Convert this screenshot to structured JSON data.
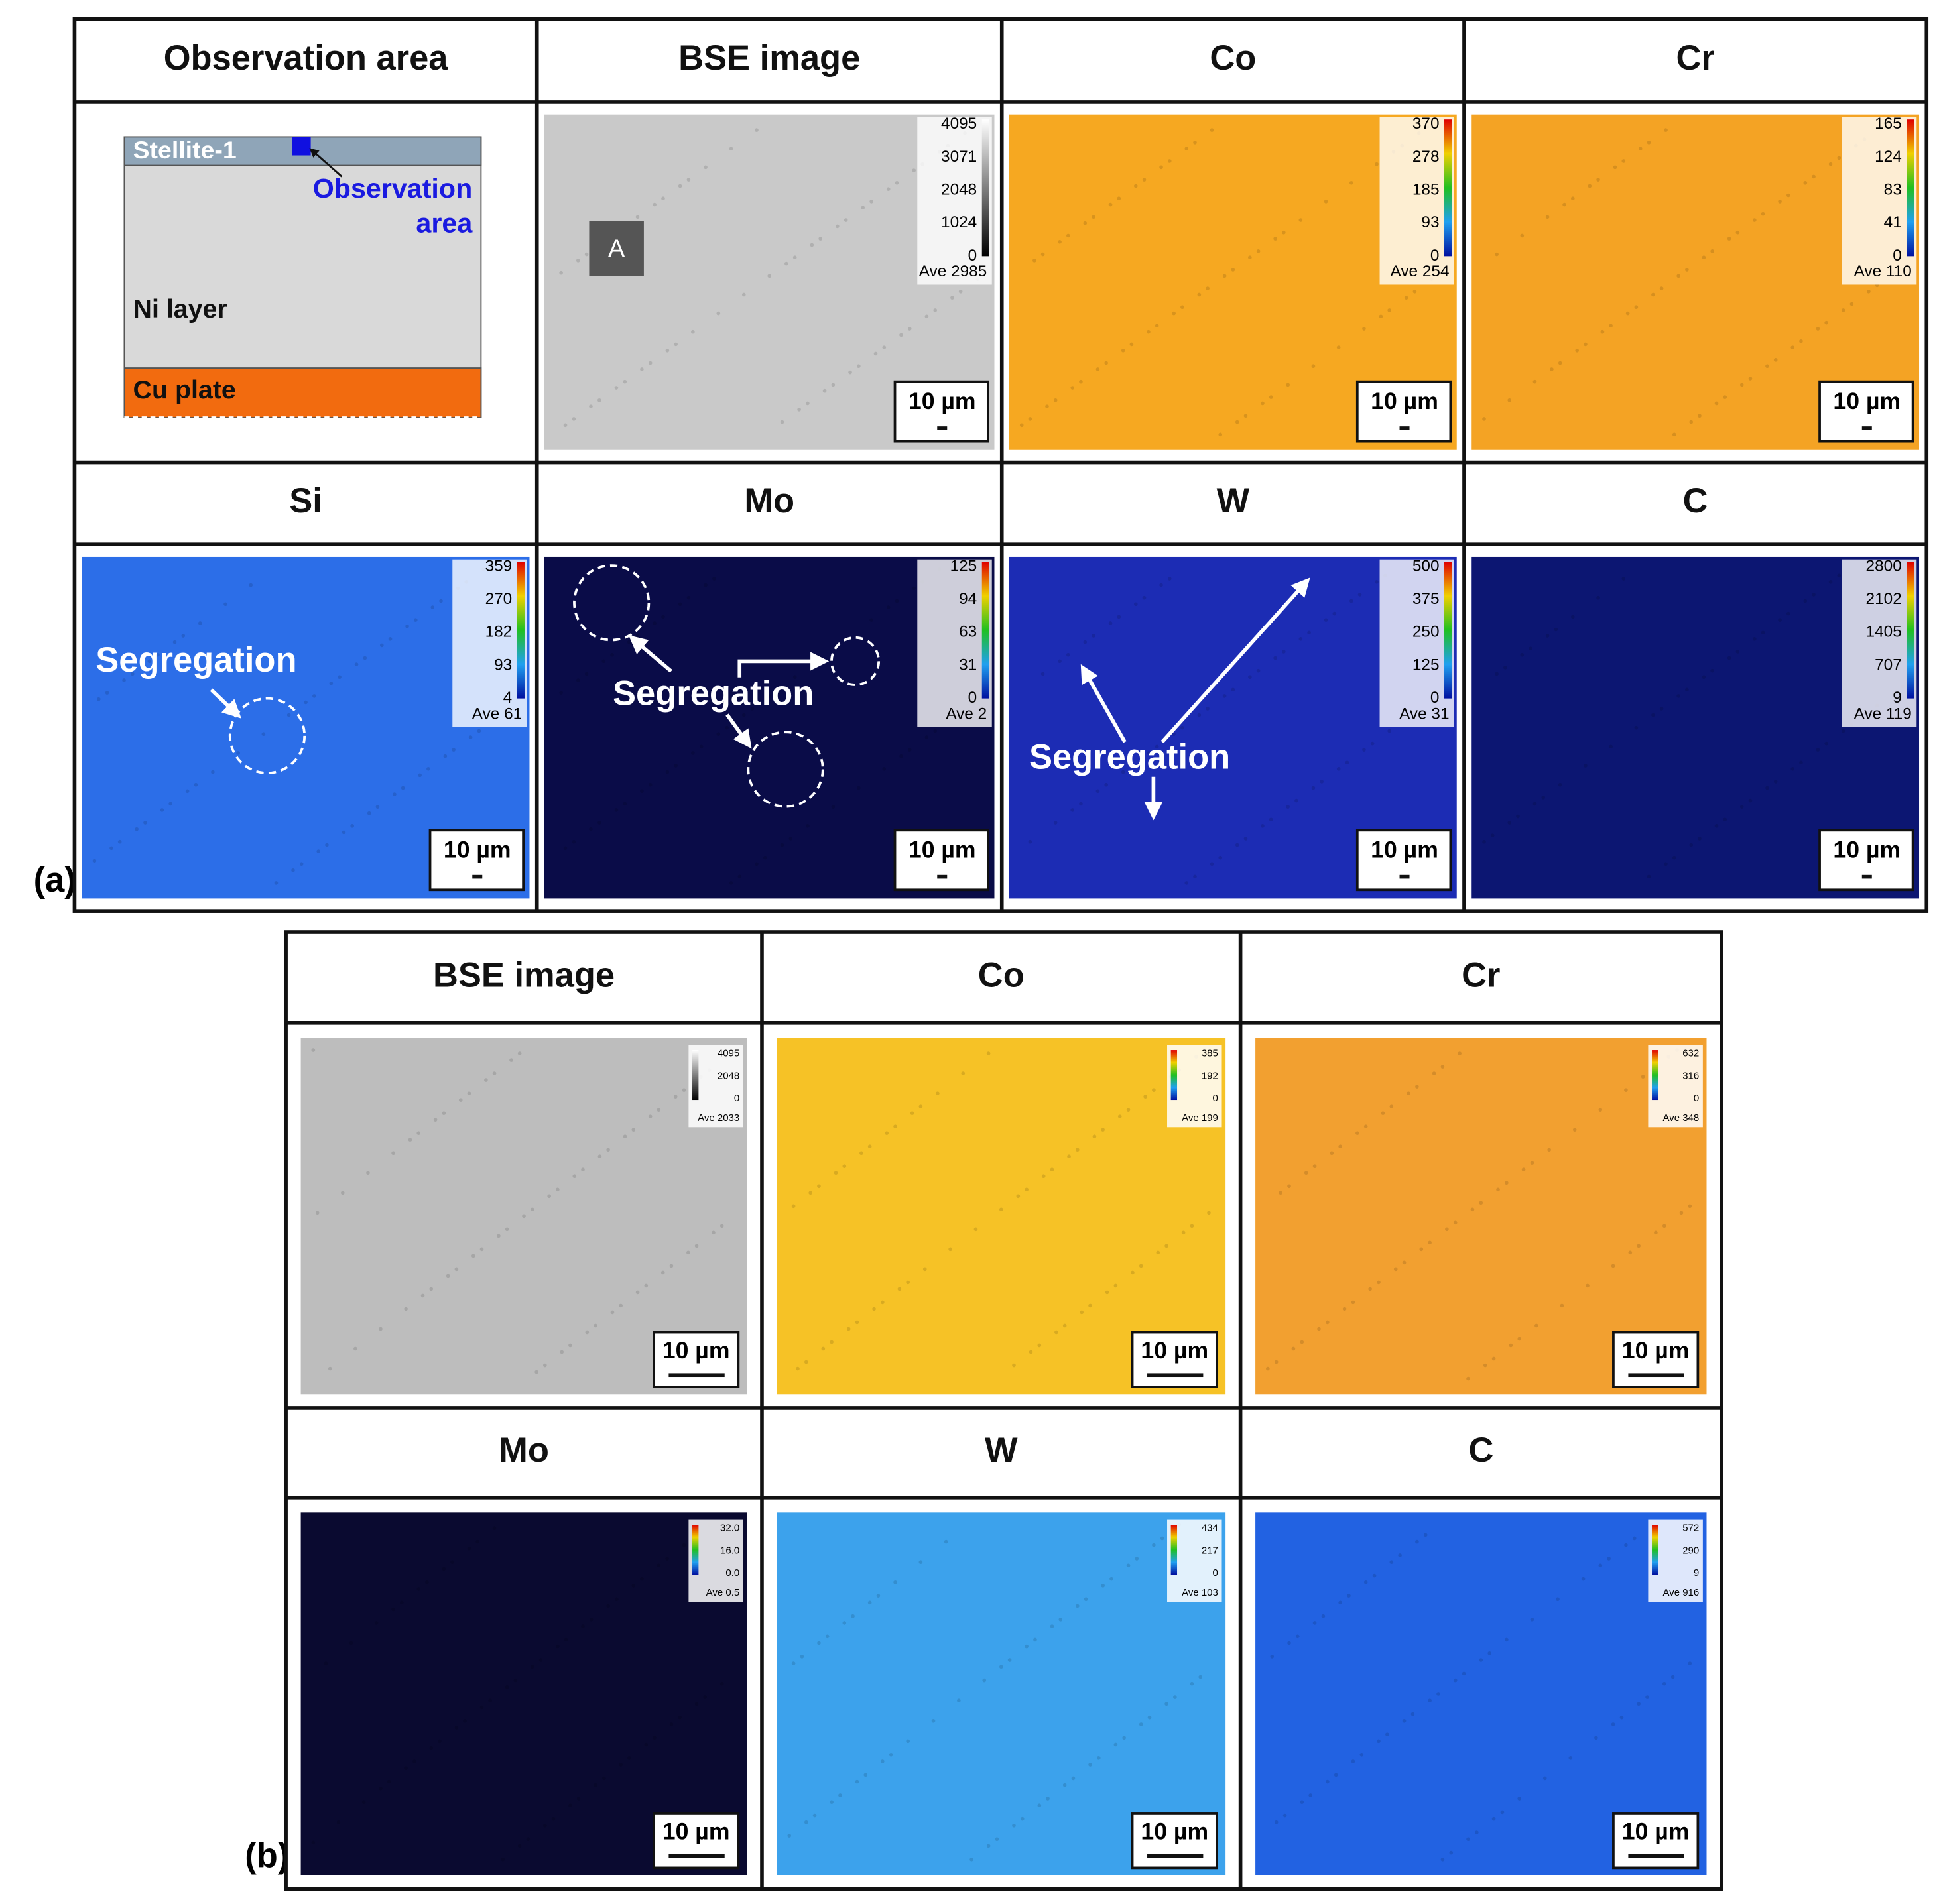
{
  "panel_a": {
    "label": "(a)",
    "cells": [
      {
        "title": "Observation area",
        "diagram": {
          "layer_top": "Stellite-1",
          "observation_label": [
            "Observation",
            "area"
          ],
          "middle": "Ni layer",
          "bottom": "Cu plate"
        }
      },
      {
        "title": "BSE image",
        "colorbar": [
          "4095",
          "3071",
          "2048",
          "1024",
          "0"
        ],
        "average": "Ave 2985",
        "scale_bar": "10 µm",
        "marker": "A"
      },
      {
        "title": "Co",
        "colorbar": [
          "370",
          "278",
          "185",
          "93",
          "0"
        ],
        "average": "Ave 254",
        "scale_bar": "10 µm"
      },
      {
        "title": "Cr",
        "colorbar": [
          "165",
          "124",
          "83",
          "41",
          "0"
        ],
        "average": "Ave 110",
        "scale_bar": "10 µm"
      },
      {
        "title": "Si",
        "colorbar": [
          "359",
          "270",
          "182",
          "93",
          "4"
        ],
        "average": "Ave 61",
        "scale_bar": "10 µm",
        "annotation": "Segregation"
      },
      {
        "title": "Mo",
        "colorbar": [
          "125",
          "94",
          "63",
          "31",
          "0"
        ],
        "average": "Ave 2",
        "scale_bar": "10 µm",
        "annotation": "Segregation"
      },
      {
        "title": "W",
        "colorbar": [
          "500",
          "375",
          "250",
          "125",
          "0"
        ],
        "average": "Ave 31",
        "scale_bar": "10 µm",
        "annotation": "Segregation"
      },
      {
        "title": "C",
        "colorbar": [
          "2800",
          "2102",
          "1405",
          "707",
          "9"
        ],
        "average": "Ave 119",
        "scale_bar": "10 µm"
      }
    ]
  },
  "panel_b": {
    "label": "(b)",
    "cells": [
      {
        "title": "BSE image",
        "colorbar": [
          "4095",
          "2048",
          "0"
        ],
        "average": "Ave 2033",
        "scale_bar": "10 µm"
      },
      {
        "title": "Co",
        "colorbar": [
          "385",
          "192",
          "0"
        ],
        "average": "Ave 199",
        "scale_bar": "10 µm"
      },
      {
        "title": "Cr",
        "colorbar": [
          "632",
          "316",
          "0"
        ],
        "average": "Ave 348",
        "scale_bar": "10 µm"
      },
      {
        "title": "Mo",
        "colorbar": [
          "32.0",
          "16.0",
          "0.0"
        ],
        "average": "Ave 0.5",
        "scale_bar": "10 µm"
      },
      {
        "title": "W",
        "colorbar": [
          "434",
          "217",
          "0"
        ],
        "average": "Ave 103",
        "scale_bar": "10 µm"
      },
      {
        "title": "C",
        "colorbar": [
          "572",
          "290",
          "9"
        ],
        "average": "Ave 916",
        "scale_bar": "10 µm"
      }
    ]
  }
}
